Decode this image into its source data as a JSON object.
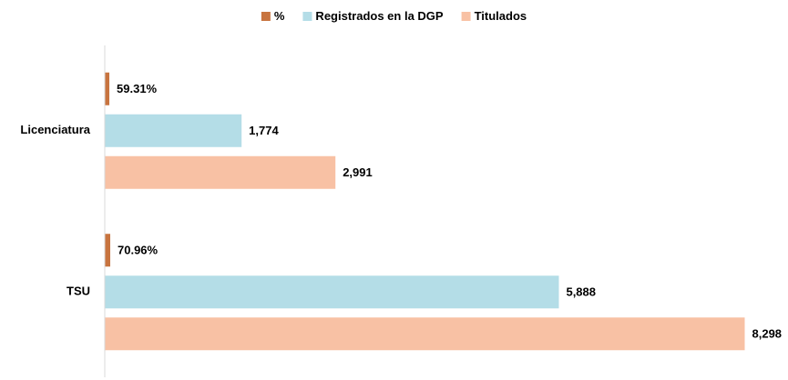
{
  "chart_data": {
    "type": "bar",
    "orientation": "horizontal",
    "categories": [
      "Licenciatura",
      "TSU"
    ],
    "series": [
      {
        "name": "%",
        "color": "#c8743f",
        "values": [
          59.31,
          70.96
        ],
        "value_labels": [
          "59.31%",
          "70.96%"
        ]
      },
      {
        "name": "Registrados en la DGP",
        "color": "#b4dde7",
        "values": [
          1774,
          5888
        ],
        "value_labels": [
          "1,774",
          "5,888"
        ]
      },
      {
        "name": "Titulados",
        "color": "#f8c1a4",
        "values": [
          2991,
          8298
        ],
        "value_labels": [
          "2,991",
          "8,298"
        ]
      }
    ],
    "xlim": [
      0,
      8800
    ],
    "legend": "top"
  }
}
